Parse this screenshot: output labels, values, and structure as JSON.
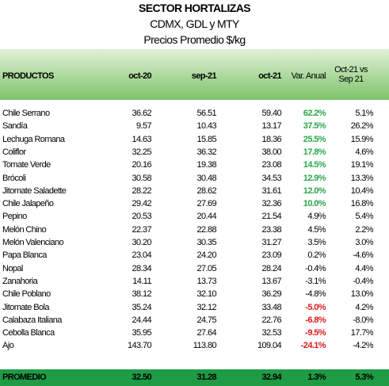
{
  "header": {
    "title": "SECTOR HORTALIZAS",
    "subtitle": "CDMX, GDL y MTY",
    "unit": "Precios Promedio $/kg"
  },
  "table": {
    "columns": [
      "PRODUCTOS",
      "oct-20",
      "sep-21",
      "oct-21",
      "Var. Anual",
      "Oct-21 vs Sep 21"
    ],
    "rows": [
      {
        "cells": [
          "Chile Serrano",
          "36.62",
          "56.51",
          "59.40",
          "62.2%",
          "5.1%"
        ],
        "var_color": "#2aa84a"
      },
      {
        "cells": [
          "Sandía",
          "9.57",
          "10.43",
          "13.17",
          "37.5%",
          "26.2%"
        ],
        "var_color": "#2aa84a"
      },
      {
        "cells": [
          "Lechuga Romana",
          "14.63",
          "15.85",
          "18.36",
          "25.5%",
          "15.9%"
        ],
        "var_color": "#2aa84a"
      },
      {
        "cells": [
          "Coliflor",
          "32.25",
          "36.32",
          "38.00",
          "17.8%",
          "4.6%"
        ],
        "var_color": "#2aa84a"
      },
      {
        "cells": [
          "Tomate Verde",
          "20.16",
          "19.38",
          "23.08",
          "14.5%",
          "19.1%"
        ],
        "var_color": "#2aa84a"
      },
      {
        "cells": [
          "Brócoli",
          "30.58",
          "30.48",
          "34.53",
          "12.9%",
          "13.3%"
        ],
        "var_color": "#2aa84a"
      },
      {
        "cells": [
          "Jitomate Saladette",
          "28.22",
          "28.62",
          "31.61",
          "12.0%",
          "10.4%"
        ],
        "var_color": "#2aa84a"
      },
      {
        "cells": [
          "Chile Jalapeño",
          "29.42",
          "27.69",
          "32.36",
          "10.0%",
          "16.8%"
        ],
        "var_color": "#2aa84a"
      },
      {
        "cells": [
          "Pepino",
          "20.53",
          "20.44",
          "21.54",
          "4.9%",
          "5.4%"
        ]
      },
      {
        "cells": [
          "Melón Chino",
          "22.37",
          "22.88",
          "23.38",
          "4.5%",
          "2.2%"
        ]
      },
      {
        "cells": [
          "Melón Valenciano",
          "30.20",
          "30.35",
          "31.27",
          "3.5%",
          "3.0%"
        ]
      },
      {
        "cells": [
          "Papa Blanca",
          "23.04",
          "24.20",
          "23.09",
          "0.2%",
          "-4.6%"
        ]
      },
      {
        "cells": [
          "Nopal",
          "28.34",
          "27.05",
          "28.24",
          "-0.4%",
          "4.4%"
        ]
      },
      {
        "cells": [
          "Zanahoria",
          "14.11",
          "13.73",
          "13.67",
          "-3.1%",
          "-0.4%"
        ]
      },
      {
        "cells": [
          "Chile Poblano",
          "38.12",
          "32.10",
          "36.29",
          "-4.8%",
          "13.0%"
        ]
      },
      {
        "cells": [
          "Jitomate Bola",
          "35.24",
          "32.12",
          "33.48",
          "-5.0%",
          "4.2%"
        ],
        "var_color": "#e01b1b"
      },
      {
        "cells": [
          "Calabaza Italiana",
          "24.44",
          "24.75",
          "22.76",
          "-6.8%",
          "-8.0%"
        ],
        "var_color": "#e01b1b"
      },
      {
        "cells": [
          "Cebolla Blanca",
          "35.95",
          "27.64",
          "32.53",
          "-9.5%",
          "17.7%"
        ],
        "var_color": "#e01b1b"
      },
      {
        "cells": [
          "Ajo",
          "143.70",
          "113.80",
          "109.04",
          "-24.1%",
          "-4.2%"
        ],
        "var_color": "#e01b1b"
      }
    ],
    "footer": [
      "PROMEDIO",
      "32.50",
      "31.28",
      "32.94",
      "1.3%",
      "5.3%"
    ]
  }
}
